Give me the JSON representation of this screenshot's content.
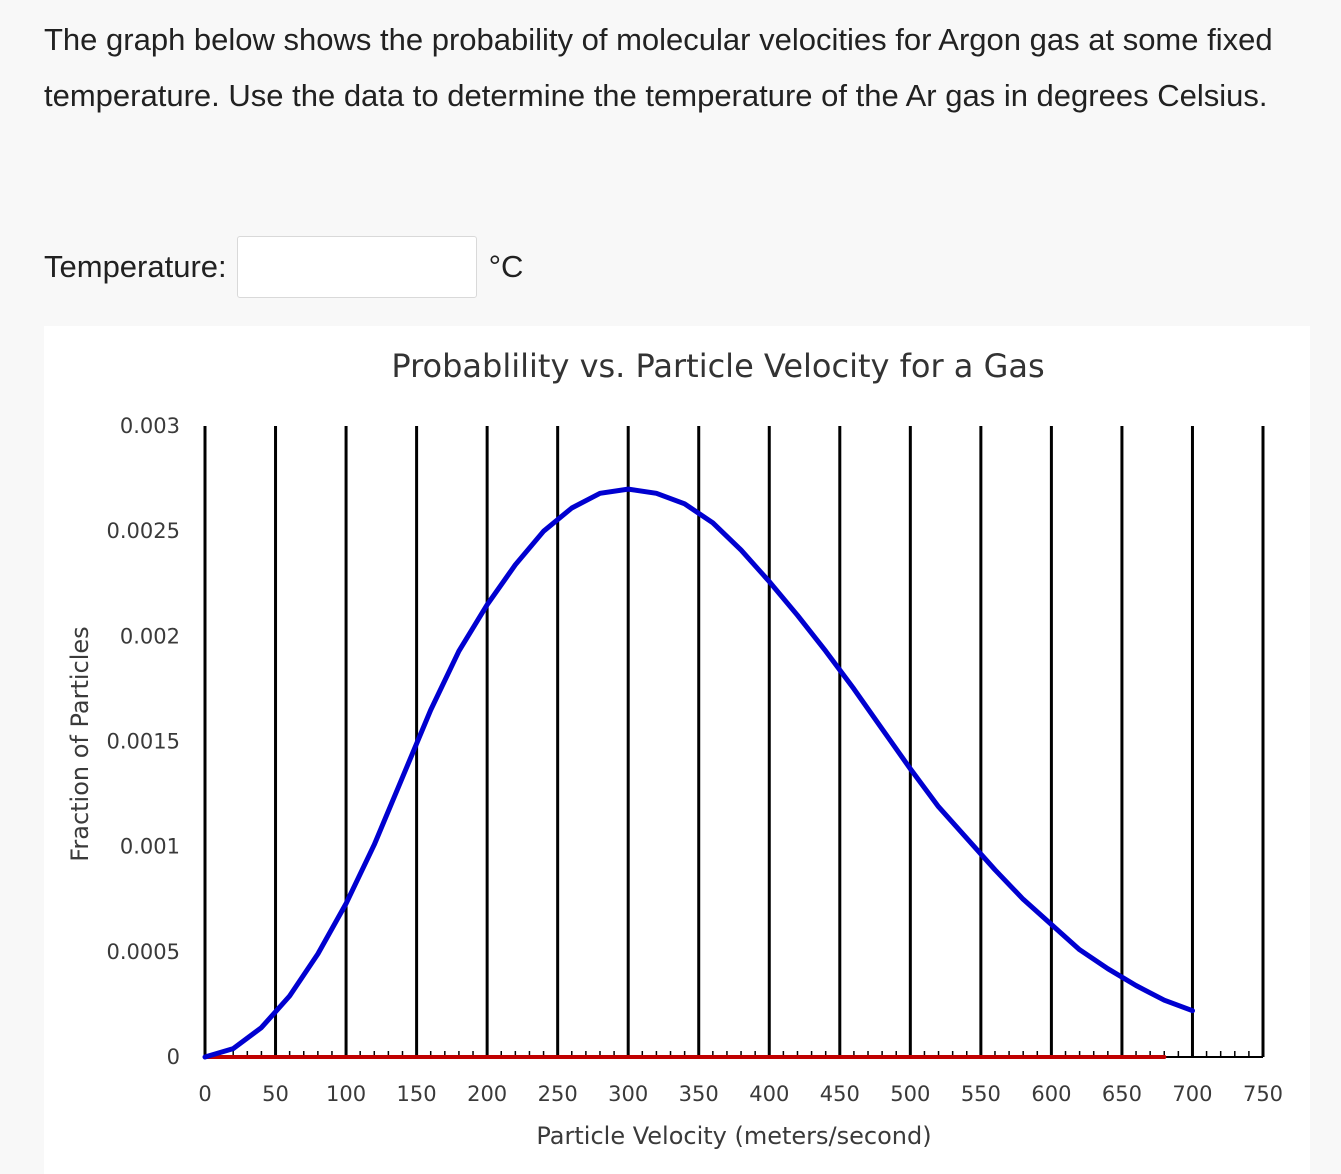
{
  "question": {
    "text": "The graph below shows the probability of molecular velocities for Argon gas at some fixed temperature.  Use the data to determine the temperature of the Ar gas in degrees Celsius."
  },
  "answer": {
    "label": "Temperature:",
    "value": "",
    "unit": "°C"
  },
  "chart_data": {
    "type": "line",
    "title": "Probablility vs. Particle Velocity for a Gas",
    "xlabel": "Particle Velocity (meters/second)",
    "ylabel": "Fraction of Particles",
    "xlim": [
      0,
      750
    ],
    "ylim": [
      0,
      0.003
    ],
    "xticks": [
      "0",
      "50",
      "100",
      "150",
      "200",
      "250",
      "300",
      "350",
      "400",
      "450",
      "500",
      "550",
      "600",
      "650",
      "700",
      "750"
    ],
    "yticks": [
      "0",
      "0.0005",
      "0.001",
      "0.0015",
      "0.002",
      "0.0025",
      "0.003"
    ],
    "vertical_gridlines": true,
    "series": [
      {
        "color": "#0000d0",
        "x": [
          0,
          20,
          40,
          60,
          80,
          100,
          120,
          140,
          160,
          180,
          200,
          220,
          240,
          260,
          280,
          300,
          320,
          340,
          360,
          380,
          400,
          420,
          440,
          460,
          480,
          500,
          520,
          540,
          560,
          580,
          600,
          620,
          640,
          660,
          680,
          700
        ],
        "y": [
          0,
          4e-05,
          0.00014,
          0.00029,
          0.00049,
          0.00073,
          0.00101,
          0.00133,
          0.00165,
          0.00193,
          0.00215,
          0.00234,
          0.0025,
          0.00261,
          0.00268,
          0.0027,
          0.00268,
          0.00263,
          0.00254,
          0.00241,
          0.00226,
          0.0021,
          0.00193,
          0.00175,
          0.00156,
          0.00137,
          0.00119,
          0.00104,
          0.00089,
          0.00075,
          0.00063,
          0.00051,
          0.00042,
          0.00034,
          0.00027,
          0.00022
        ]
      },
      {
        "color": "#c00000",
        "x": [
          0,
          680
        ],
        "y": [
          0,
          0
        ]
      }
    ]
  }
}
